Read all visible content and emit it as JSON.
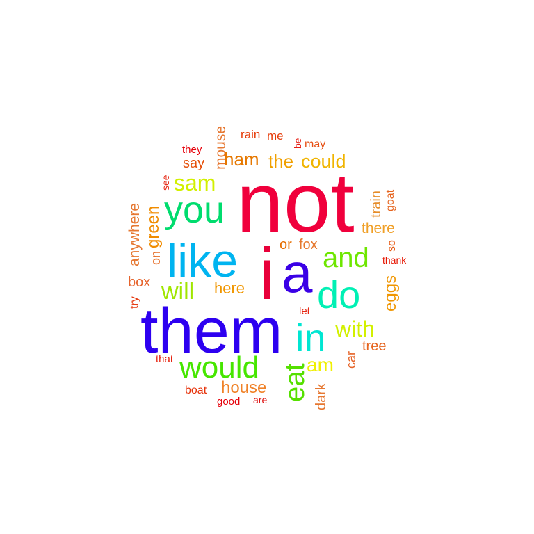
{
  "words": [
    {
      "text": "not",
      "color": "#f0003c"
    },
    {
      "text": "them",
      "color": "#2d00f0"
    },
    {
      "text": "i",
      "color": "#e8003a"
    },
    {
      "text": "a",
      "color": "#3a00e6"
    },
    {
      "text": "like",
      "color": "#00b4f0"
    },
    {
      "text": "you",
      "color": "#00dc6e"
    },
    {
      "text": "would",
      "color": "#46e600"
    },
    {
      "text": "do",
      "color": "#00f0b4"
    },
    {
      "text": "in",
      "color": "#00e6d2"
    },
    {
      "text": "and",
      "color": "#6ee600"
    },
    {
      "text": "eat",
      "color": "#55e000"
    },
    {
      "text": "sam",
      "color": "#d2f000"
    },
    {
      "text": "with",
      "color": "#d2f000"
    },
    {
      "text": "will",
      "color": "#a0e600"
    },
    {
      "text": "am",
      "color": "#f0f000"
    },
    {
      "text": "could",
      "color": "#f0b400"
    },
    {
      "text": "the",
      "color": "#f0a000"
    },
    {
      "text": "ham",
      "color": "#e67800"
    },
    {
      "text": "here",
      "color": "#f09600"
    },
    {
      "text": "house",
      "color": "#f08228"
    },
    {
      "text": "eggs",
      "color": "#f09600"
    },
    {
      "text": "green",
      "color": "#f08c00"
    },
    {
      "text": "there",
      "color": "#f0a028"
    },
    {
      "text": "mouse",
      "color": "#e67832"
    },
    {
      "text": "anywhere",
      "color": "#e67832"
    },
    {
      "text": "train",
      "color": "#e68c28"
    },
    {
      "text": "box",
      "color": "#e6642d"
    },
    {
      "text": "fox",
      "color": "#e6782d"
    },
    {
      "text": "or",
      "color": "#e66e00"
    },
    {
      "text": "dark",
      "color": "#e67832"
    },
    {
      "text": "say",
      "color": "#e6500a"
    },
    {
      "text": "tree",
      "color": "#e6641e"
    },
    {
      "text": "car",
      "color": "#e66428"
    },
    {
      "text": "goat",
      "color": "#e6641e"
    },
    {
      "text": "so",
      "color": "#e65a14"
    },
    {
      "text": "may",
      "color": "#e65014"
    },
    {
      "text": "rain",
      "color": "#e63c0a"
    },
    {
      "text": "me",
      "color": "#e63c0a"
    },
    {
      "text": "on",
      "color": "#e66e28"
    },
    {
      "text": "boat",
      "color": "#e6320a"
    },
    {
      "text": "try",
      "color": "#e63c14"
    },
    {
      "text": "they",
      "color": "#e6000a"
    },
    {
      "text": "thank",
      "color": "#e61400"
    },
    {
      "text": "let",
      "color": "#e62814"
    },
    {
      "text": "that",
      "color": "#e61e0a"
    },
    {
      "text": "good",
      "color": "#e6000a"
    },
    {
      "text": "are",
      "color": "#dc0a0a"
    },
    {
      "text": "be",
      "color": "#e61e14"
    },
    {
      "text": "see",
      "color": "#e62814"
    }
  ]
}
